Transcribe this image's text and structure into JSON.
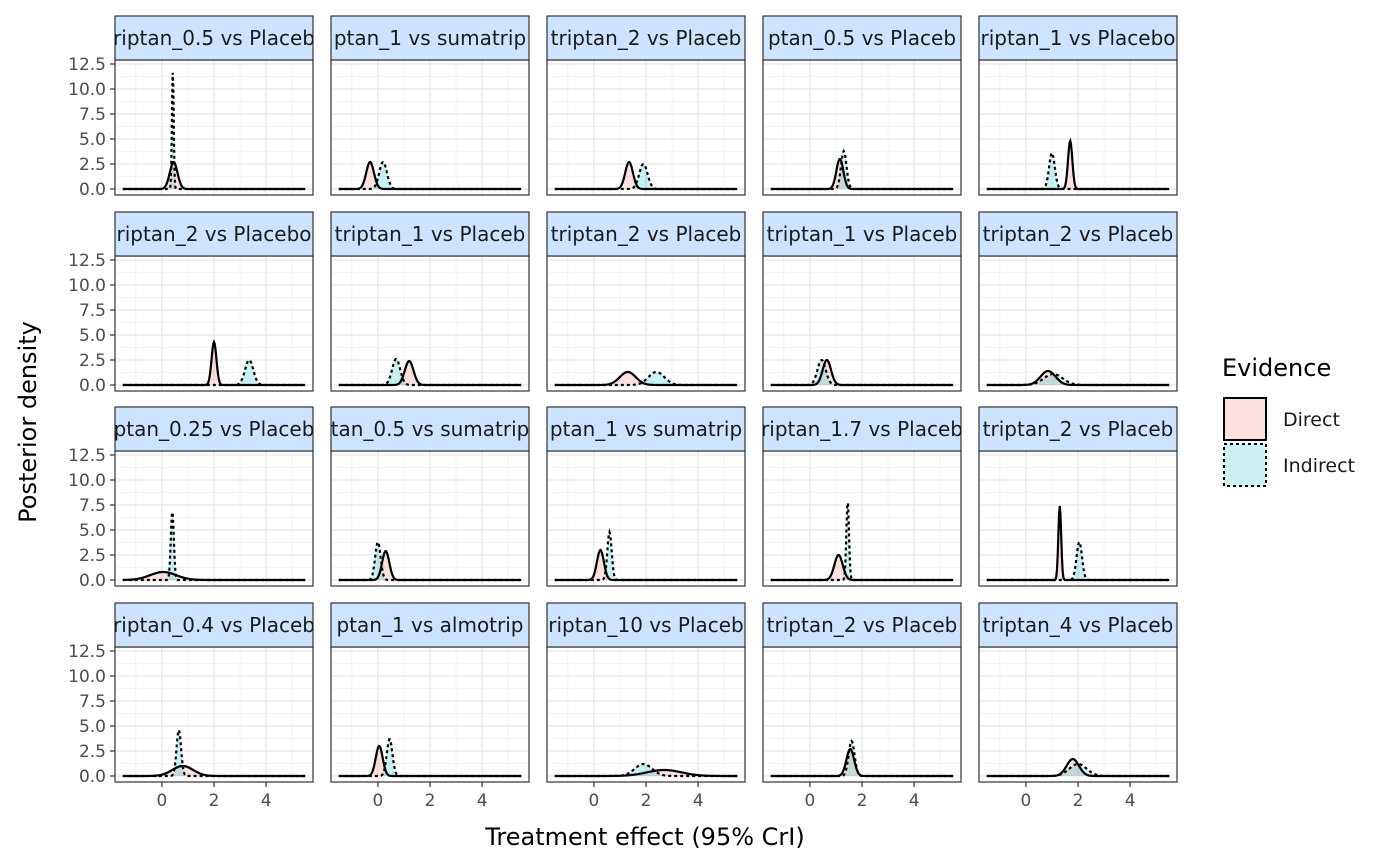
{
  "chart_data": {
    "type": "area",
    "xlabel": "Treatment effect (95% CrI)",
    "ylabel": "Posterior density",
    "xlim": [
      -1.8,
      5.8
    ],
    "ylim": [
      -0.6,
      12.9
    ],
    "x_ticks": [
      0,
      2,
      4
    ],
    "x_tick_labels": [
      "0",
      "2",
      "4"
    ],
    "y_ticks": [
      0,
      2.5,
      5,
      7.5,
      10,
      12.5
    ],
    "y_tick_labels": [
      "0.0",
      "2.5",
      "5.0",
      "7.5",
      "10.0",
      "12.5"
    ],
    "grid": true,
    "legend": {
      "title": "Evidence",
      "position": "right",
      "items": [
        {
          "label": "Direct",
          "fill": "#fde0e0",
          "line": "solid"
        },
        {
          "label": "Indirect",
          "fill": "#cdf0f0",
          "line": "dotted"
        }
      ]
    },
    "panels": [
      {
        "label": "riptan_0.5 vs Placeb",
        "direct": {
          "mean": 0.45,
          "peak": 2.7
        },
        "indirect": {
          "mean": 0.42,
          "peak": 12.0
        }
      },
      {
        "label": "ptan_1 vs sumatrip",
        "direct": {
          "mean": -0.3,
          "peak": 2.7
        },
        "indirect": {
          "mean": 0.2,
          "peak": 2.7
        }
      },
      {
        "label": "triptan_2 vs Placeb",
        "direct": {
          "mean": 1.35,
          "peak": 2.7
        },
        "indirect": {
          "mean": 1.9,
          "peak": 2.5
        }
      },
      {
        "label": "ptan_0.5 vs Placeb",
        "direct": {
          "mean": 1.15,
          "peak": 3.0
        },
        "indirect": {
          "mean": 1.3,
          "peak": 3.8
        }
      },
      {
        "label": "riptan_1 vs Placebo",
        "direct": {
          "mean": 1.7,
          "peak": 4.8
        },
        "indirect": {
          "mean": 1.0,
          "peak": 3.6
        }
      },
      {
        "label": "riptan_2 vs Placebo",
        "direct": {
          "mean": 2.0,
          "peak": 4.3
        },
        "indirect": {
          "mean": 3.35,
          "peak": 2.5
        }
      },
      {
        "label": "triptan_1 vs Placeb",
        "direct": {
          "mean": 1.2,
          "peak": 2.4
        },
        "indirect": {
          "mean": 0.7,
          "peak": 2.6
        }
      },
      {
        "label": "triptan_2 vs Placeb",
        "direct": {
          "mean": 1.3,
          "peak": 1.3
        },
        "indirect": {
          "mean": 2.4,
          "peak": 1.3
        }
      },
      {
        "label": "triptan_1 vs Placeb",
        "direct": {
          "mean": 0.65,
          "peak": 2.5
        },
        "indirect": {
          "mean": 0.45,
          "peak": 2.5
        }
      },
      {
        "label": "triptan_2 vs Placeb",
        "direct": {
          "mean": 0.85,
          "peak": 1.4
        },
        "indirect": {
          "mean": 1.05,
          "peak": 1.1
        }
      },
      {
        "label": "ptan_0.25 vs Placeb",
        "direct": {
          "mean": 0.05,
          "peak": 0.8
        },
        "indirect": {
          "mean": 0.4,
          "peak": 6.9
        }
      },
      {
        "label": "tan_0.5 vs sumatrip",
        "direct": {
          "mean": 0.3,
          "peak": 2.9
        },
        "indirect": {
          "mean": 0.0,
          "peak": 3.8
        }
      },
      {
        "label": "ptan_1 vs sumatrip",
        "direct": {
          "mean": 0.25,
          "peak": 3.0
        },
        "indirect": {
          "mean": 0.6,
          "peak": 4.8
        }
      },
      {
        "label": "riptan_1.7 vs Placeb",
        "direct": {
          "mean": 1.1,
          "peak": 2.5
        },
        "indirect": {
          "mean": 1.45,
          "peak": 7.9
        }
      },
      {
        "label": "triptan_2 vs Placeb",
        "direct": {
          "mean": 1.3,
          "peak": 7.4
        },
        "indirect": {
          "mean": 2.05,
          "peak": 3.8
        }
      },
      {
        "label": "riptan_0.4 vs Placeb",
        "direct": {
          "mean": 0.8,
          "peak": 1.0
        },
        "indirect": {
          "mean": 0.65,
          "peak": 4.6
        }
      },
      {
        "label": "ptan_1 vs almotrip",
        "direct": {
          "mean": 0.05,
          "peak": 3.0
        },
        "indirect": {
          "mean": 0.45,
          "peak": 3.7
        }
      },
      {
        "label": "riptan_10 vs Placeb",
        "direct": {
          "mean": 2.7,
          "peak": 0.6
        },
        "indirect": {
          "mean": 1.9,
          "peak": 1.2
        }
      },
      {
        "label": "triptan_2 vs Placeb",
        "direct": {
          "mean": 1.55,
          "peak": 2.7
        },
        "indirect": {
          "mean": 1.6,
          "peak": 3.5
        }
      },
      {
        "label": "triptan_4 vs Placeb",
        "direct": {
          "mean": 1.8,
          "peak": 1.7
        },
        "indirect": {
          "mean": 2.0,
          "peak": 1.2
        }
      }
    ]
  }
}
